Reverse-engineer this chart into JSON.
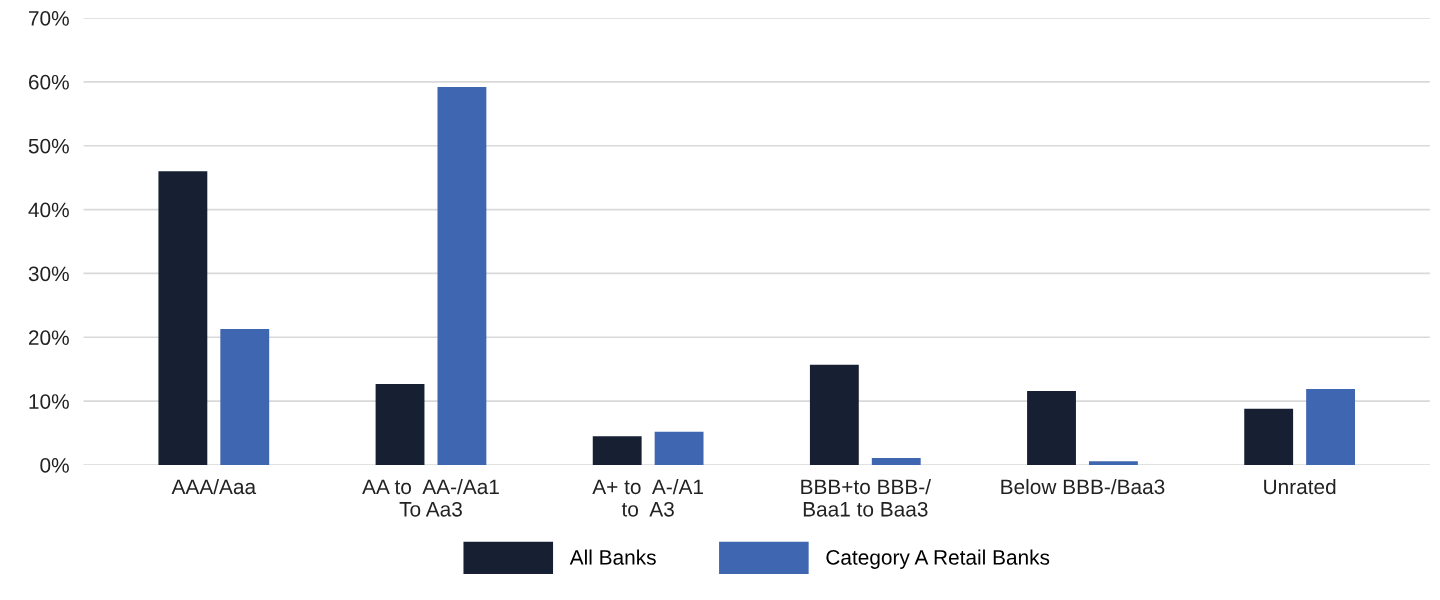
{
  "chart_data": {
    "type": "bar",
    "categories": [
      "AAA/Aaa",
      "AA to  AA-/Aa1\nTo Aa3",
      "A+ to  A-/A1\nto  A3",
      "BBB+to BBB-/\nBaa1 to Baa3",
      "Below BBB-/Baa3",
      "Unrated"
    ],
    "series": [
      {
        "name": "All Banks",
        "color": "#162032",
        "values": [
          46.0,
          12.7,
          4.5,
          15.7,
          11.6,
          8.8
        ]
      },
      {
        "name": "Category A Retail Banks",
        "color": "#3f66b0",
        "values": [
          21.3,
          59.2,
          5.2,
          1.1,
          0.6,
          11.9
        ]
      }
    ],
    "ylim": [
      0,
      70
    ],
    "yticks": [
      {
        "value": 0,
        "label": "0%"
      },
      {
        "value": 10,
        "label": "10%"
      },
      {
        "value": 20,
        "label": "20%"
      },
      {
        "value": 30,
        "label": "30%"
      },
      {
        "value": 40,
        "label": "40%"
      },
      {
        "value": 50,
        "label": "50%"
      },
      {
        "value": 60,
        "label": "60%"
      },
      {
        "value": 70,
        "label": "70%"
      }
    ],
    "grid": "y",
    "legend": "bottom"
  }
}
